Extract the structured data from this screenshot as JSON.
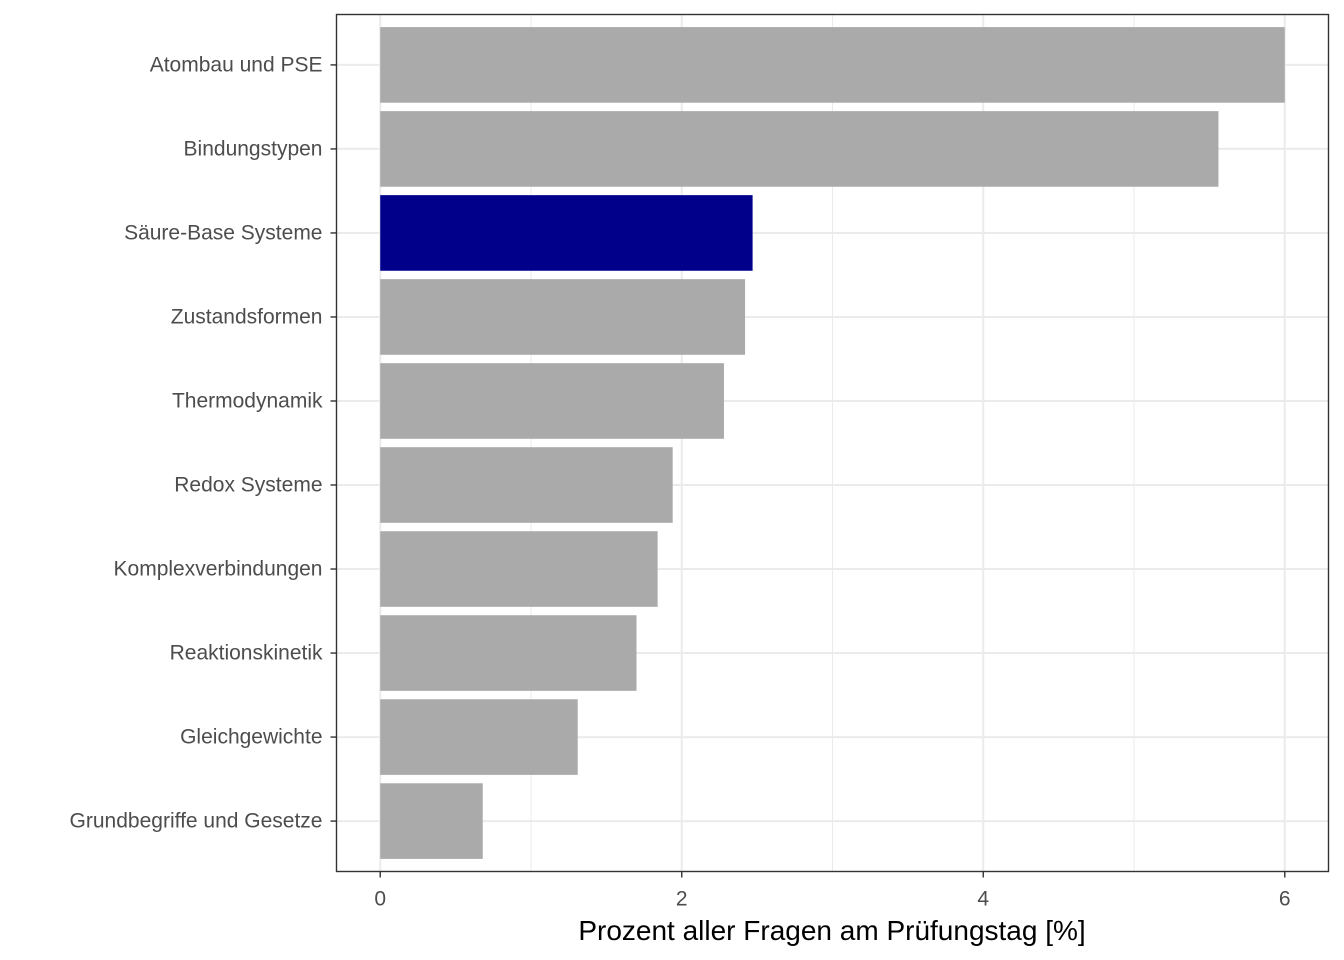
{
  "chart_data": {
    "type": "bar",
    "orientation": "horizontal",
    "title": "",
    "xlabel": "Prozent aller Fragen am Prüfungstag [%]",
    "ylabel": "",
    "xlim": [
      -0.29,
      6.29
    ],
    "xticks": [
      0,
      2,
      4,
      6
    ],
    "grid": true,
    "categories": [
      "Atombau und PSE",
      "Bindungstypen",
      "Säure-Base Systeme",
      "Zustandsformen",
      "Thermodynamik",
      "Redox Systeme",
      "Komplexverbindungen",
      "Reaktionskinetik",
      "Gleichgewichte",
      "Grundbegriffe und Gesetze"
    ],
    "values": [
      6.0,
      5.56,
      2.47,
      2.42,
      2.28,
      1.94,
      1.84,
      1.7,
      1.31,
      0.68
    ],
    "highlight_category": "Säure-Base Systeme",
    "colors": {
      "bar": "#aaaaaa",
      "highlight": "#00008b",
      "grid": "#ebebeb",
      "panel_border": "#333333"
    }
  }
}
